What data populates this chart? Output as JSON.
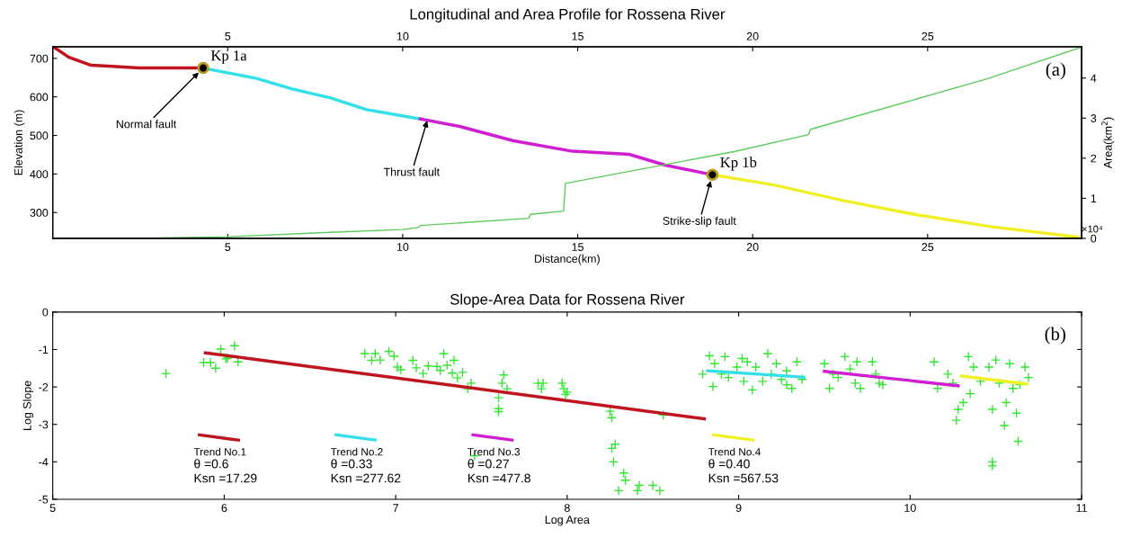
{
  "chart_data": [
    {
      "type": "line",
      "title": "Longitudinal and Area Profile for Rossena River",
      "xlabel": "Distance(km)",
      "ylabel": "Elevation (m)",
      "y2label": "Area(km$^{2}$)",
      "xlim": [
        0,
        29.4
      ],
      "xticks": [
        5,
        10,
        15,
        20,
        25
      ],
      "x2lim": [
        0,
        29.4
      ],
      "x2ticks": [
        5,
        10,
        15,
        20,
        25
      ],
      "ylim": [
        233,
        730
      ],
      "yticks": [
        300,
        400,
        500,
        600,
        700
      ],
      "y2lim": [
        0,
        4.78
      ],
      "y2ticks": [
        0,
        1,
        2,
        3,
        4
      ],
      "grid": false,
      "line_style": "solid",
      "series": [
        {
          "color": "#c0141e",
          "x": [
            0.02,
            0.46,
            1.1,
            1.6,
            2.46,
            4.3
          ],
          "values": [
            730,
            703,
            682,
            680,
            675,
            675
          ]
        },
        {
          "color": "#33e0e8",
          "x": [
            4.3,
            5.82,
            6.87,
            7.92,
            8.97,
            10.5
          ],
          "values": [
            675,
            648,
            620,
            598,
            567,
            543
          ]
        },
        {
          "color": "#d21ed2",
          "x": [
            10.5,
            11.6,
            13.17,
            14.85,
            16.47,
            17.5,
            18.85
          ],
          "values": [
            543,
            524,
            486,
            459,
            451,
            423,
            398
          ]
        },
        {
          "color": "#f0f028",
          "x": [
            18.85,
            20.58,
            22.64,
            24.7,
            26.75,
            29.3
          ],
          "values": [
            398,
            372,
            330,
            294,
            264,
            236
          ]
        },
        {
          "color": "#5ccc5c",
          "axis": "y2",
          "x": [
            0,
            2.35,
            5,
            7.92,
            10,
            10.44,
            10.5,
            13.6,
            13.65,
            14.6,
            14.65,
            19.5,
            21.6,
            21.65,
            26.7,
            29.39
          ],
          "values": [
            0,
            0,
            0.04,
            0.15,
            0.22,
            0.27,
            0.32,
            0.5,
            0.6,
            0.68,
            1.37,
            2.17,
            2.59,
            2.72,
            3.98,
            4.77
          ]
        },
        {
          "type": "scatter",
          "marker": "circle",
          "color": "#000000",
          "x": [
            4.3,
            18.85
          ],
          "values": [
            675,
            398
          ]
        }
      ],
      "annotations": [
        {
          "text": "Kp 1a",
          "x": 4.3,
          "y": 675
        },
        {
          "text": "Normal fault",
          "x": 4.3,
          "y": 675
        },
        {
          "text": "Thrust fault",
          "x": 10.7,
          "y": 538
        },
        {
          "text": "Kp 1b",
          "x": 18.85,
          "y": 398
        },
        {
          "text": "Strike-slip fault",
          "x": 18.85,
          "y": 398
        },
        "(a)",
        "×10⁴"
      ]
    },
    {
      "type": "scatter",
      "title": "Slope-Area Data for Rossena River",
      "xlabel": "Log Area",
      "ylabel": "Log Slope",
      "xlim": [
        5,
        11
      ],
      "xticks": [
        5,
        6,
        7,
        8,
        9,
        10,
        11
      ],
      "ylim": [
        -5,
        0
      ],
      "yticks": [
        {
          "value": -5,
          "label": "-5"
        },
        {
          "value": -4,
          "label": "-4"
        },
        {
          "value": -3,
          "label": "-3"
        },
        {
          "value": -2,
          "label": "-2"
        },
        {
          "value": -1,
          "label": "-1"
        },
        0
      ],
      "grid": false,
      "legend": "bottom",
      "series": [
        {
          "type": "scatter",
          "marker": "cross",
          "color": "#33e633",
          "x": [
            5.66,
            5.88,
            5.92,
            5.95,
            5.98,
            6.01,
            6.06,
            6.02,
            6.08,
            6.82,
            6.88,
            6.86,
            6.91,
            6.96,
            6.99,
            7.01,
            7.03,
            7.1,
            7.12,
            7.16,
            7.19,
            7.24,
            7.28,
            7.26,
            7.3,
            7.34,
            7.33,
            7.36,
            7.39,
            7.42,
            7.44,
            7.46,
            7.6,
            7.6,
            7.6,
            7.63,
            7.62,
            7.65,
            7.83,
            7.85,
            7.86,
            7.97,
            7.98,
            8.0,
            7.99,
            8.25,
            8.26,
            8.26,
            8.28,
            8.27,
            8.33,
            8.34,
            8.3,
            8.42,
            8.41,
            8.5,
            8.54,
            8.56,
            8.79,
            8.83,
            8.86,
            8.85,
            8.92,
            8.94,
            8.99,
            9.02,
            9.03,
            9.08,
            9.1,
            9.17,
            9.19,
            9.22,
            9.25,
            9.28,
            9.31,
            9.34,
            9.37,
            8.9,
            9.05,
            9.14,
            9.28,
            9.5,
            9.53,
            9.58,
            9.62,
            9.65,
            9.68,
            9.71,
            9.69,
            9.78,
            9.8,
            9.84,
            9.82,
            9.55,
            10.14,
            10.16,
            10.22,
            10.27,
            10.28,
            10.31,
            10.34,
            10.37,
            10.41,
            10.46,
            10.48,
            10.48,
            10.48,
            10.52,
            10.55,
            10.56,
            10.58,
            10.62,
            10.63,
            10.64,
            10.67,
            10.69,
            10.6,
            10.35,
            10.25,
            10.5
          ],
          "values": [
            -1.64,
            -1.35,
            -1.35,
            -1.5,
            -0.99,
            -1.25,
            -0.9,
            -1.23,
            -1.33,
            -1.11,
            -1.11,
            -1.29,
            -1.28,
            -1.05,
            -1.18,
            -1.47,
            -1.54,
            -1.29,
            -1.49,
            -1.64,
            -1.44,
            -1.45,
            -1.11,
            -1.56,
            -1.42,
            -1.29,
            -1.63,
            -1.76,
            -1.61,
            -2.05,
            -1.9,
            -3.84,
            -2.66,
            -2.29,
            -2.58,
            -1.68,
            -1.9,
            -2.05,
            -1.9,
            -2.05,
            -1.9,
            -1.9,
            -2.05,
            -2.14,
            -2.2,
            -2.65,
            -2.82,
            -3.64,
            -3.53,
            -4.0,
            -4.3,
            -4.49,
            -4.77,
            -4.63,
            -4.77,
            -4.63,
            -4.77,
            -2.75,
            -1.66,
            -1.17,
            -1.38,
            -1.99,
            -1.19,
            -1.75,
            -1.47,
            -1.24,
            -1.85,
            -2.08,
            -1.47,
            -1.11,
            -1.66,
            -1.38,
            -1.8,
            -1.57,
            -2.04,
            -1.33,
            -1.8,
            -1.66,
            -1.33,
            -1.85,
            -1.94,
            -1.38,
            -2.04,
            -1.75,
            -1.19,
            -1.52,
            -1.9,
            -2.04,
            -1.33,
            -1.33,
            -1.66,
            -1.94,
            -1.9,
            -1.66,
            -1.33,
            -2.04,
            -1.66,
            -2.89,
            -2.6,
            -2.42,
            -1.19,
            -1.47,
            -1.85,
            -1.47,
            -2.6,
            -4.11,
            -4.0,
            -1.9,
            -3.03,
            -2.42,
            -1.38,
            -2.7,
            -3.45,
            -1.94,
            -1.47,
            -1.75,
            -2.04,
            -2.18,
            -1.9,
            -1.28
          ]
        },
        {
          "type": "line",
          "name": "Trend No.1",
          "color": "#c0141e",
          "x": [
            5.89,
            8.8
          ],
          "values": [
            -1.09,
            -2.85
          ]
        },
        {
          "type": "line",
          "name": "Trend No.2",
          "color": "#33e0e8",
          "x": [
            8.82,
            9.38
          ],
          "values": [
            -1.57,
            -1.74
          ]
        },
        {
          "type": "line",
          "name": "Trend No.3",
          "color": "#d21ed2",
          "x": [
            9.5,
            10.28
          ],
          "values": [
            -1.58,
            -1.97
          ]
        },
        {
          "type": "line",
          "name": "Trend No.4",
          "color": "#f0f028",
          "x": [
            10.3,
            10.68
          ],
          "values": [
            -1.71,
            -1.92
          ]
        }
      ],
      "annotations": [
        "(b)",
        "θ =0.6",
        "Ksn =17.29",
        "θ =0.33",
        "Ksn =277.62",
        "θ =0.27",
        "Ksn =477.8",
        "θ =0.40",
        "Ksn =567.53"
      ]
    }
  ]
}
